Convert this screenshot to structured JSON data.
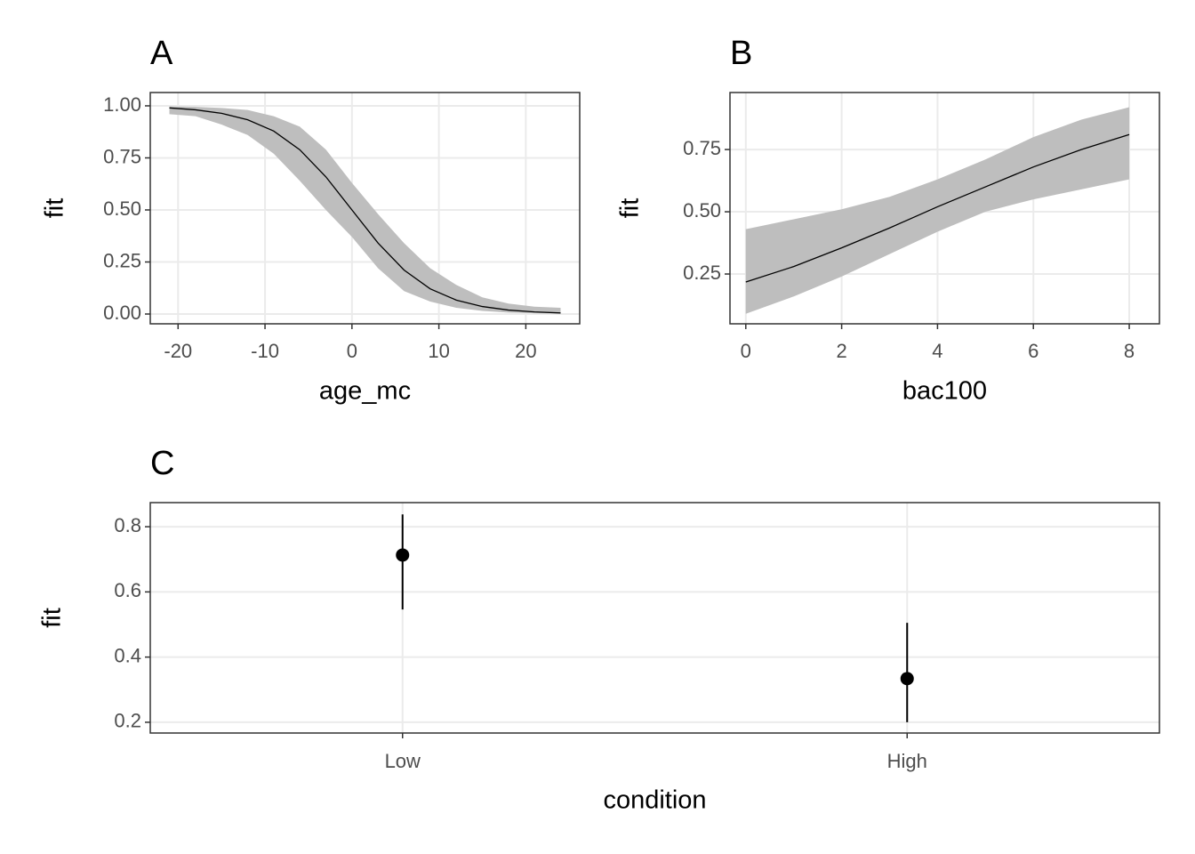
{
  "chart_data": [
    {
      "type": "line",
      "title": "A",
      "x_label": "age_mc",
      "y_label": "fit",
      "x": [
        -21,
        -18,
        -15,
        -12,
        -9,
        -6,
        -3,
        0,
        3,
        6,
        9,
        12,
        15,
        18,
        21,
        24
      ],
      "values": [
        0.99,
        0.981,
        0.964,
        0.933,
        0.879,
        0.789,
        0.659,
        0.5,
        0.341,
        0.211,
        0.121,
        0.067,
        0.036,
        0.019,
        0.01,
        0.005
      ],
      "lower": [
        0.96,
        0.95,
        0.91,
        0.86,
        0.77,
        0.64,
        0.5,
        0.37,
        0.22,
        0.11,
        0.06,
        0.03,
        0.015,
        0.007,
        0.004,
        0.002
      ],
      "upper": [
        0.997,
        0.995,
        0.99,
        0.98,
        0.95,
        0.9,
        0.79,
        0.63,
        0.48,
        0.34,
        0.22,
        0.14,
        0.08,
        0.05,
        0.035,
        0.03
      ],
      "color": "#000000",
      "band_color": "#bebebe",
      "xlim": [
        -23.2,
        26.2
      ],
      "ylim": [
        -0.047,
        1.064
      ],
      "xticks": [
        -20,
        -10,
        0,
        10,
        20
      ],
      "yticks": [
        {
          "value": 0,
          "label": "0.00"
        },
        {
          "value": 0.25,
          "label": "0.25"
        },
        {
          "value": 0.5,
          "label": "0.50"
        },
        {
          "value": 0.75,
          "label": "0.75"
        },
        {
          "value": 1,
          "label": "1.00"
        }
      ],
      "grid": true
    },
    {
      "type": "line",
      "title": "B",
      "x_label": "bac100",
      "y_label": "fit",
      "x": [
        0,
        1,
        2,
        3,
        4,
        5,
        6,
        7,
        8
      ],
      "values": [
        0.218,
        0.28,
        0.355,
        0.435,
        0.52,
        0.6,
        0.68,
        0.75,
        0.81
      ],
      "lower": [
        0.09,
        0.16,
        0.24,
        0.33,
        0.42,
        0.5,
        0.55,
        0.59,
        0.63
      ],
      "upper": [
        0.43,
        0.47,
        0.51,
        0.56,
        0.63,
        0.71,
        0.8,
        0.87,
        0.92
      ],
      "color": "#000000",
      "band_color": "#bebebe",
      "xlim": [
        -0.33,
        8.63
      ],
      "ylim": [
        0.05,
        0.979
      ],
      "xticks": [
        0,
        2,
        4,
        6,
        8
      ],
      "yticks": [
        0.25,
        {
          "value": 0.5,
          "label": "0.50"
        },
        0.75
      ],
      "grid": true
    },
    {
      "type": "pointrange",
      "title": "C",
      "x_label": "condition",
      "y_label": "fit",
      "categories": [
        "Low",
        "High"
      ],
      "values": [
        0.713,
        0.334
      ],
      "lower": [
        0.546,
        0.2
      ],
      "upper": [
        0.838,
        0.505
      ],
      "color": "#000000",
      "ylim": [
        0.167,
        0.874
      ],
      "yticks": [
        0.2,
        0.4,
        0.6,
        0.8
      ],
      "grid": true
    }
  ]
}
